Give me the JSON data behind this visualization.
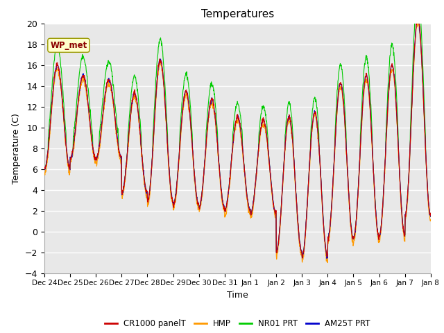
{
  "title": "Temperatures",
  "xlabel": "Time",
  "ylabel": "Temperature (C)",
  "ylim": [
    -4,
    20
  ],
  "bg_color": "#e8e8e8",
  "fig_color": "#ffffff",
  "legend_labels": [
    "CR1000 panelT",
    "HMP",
    "NR01 PRT",
    "AM25T PRT"
  ],
  "legend_colors": [
    "#cc0000",
    "#ff9900",
    "#00cc00",
    "#0000cc"
  ],
  "station_label": "WP_met",
  "x_tick_labels": [
    "Dec 24",
    "Dec 25",
    "Dec 26",
    "Dec 27",
    "Dec 28",
    "Dec 29",
    "Dec 30",
    "Dec 31",
    "Jan 1",
    "Jan 2",
    "Jan 3",
    "Jan 4",
    "Jan 5",
    "Jan 6",
    "Jan 7",
    "Jan 8"
  ],
  "num_days": 15,
  "figsize": [
    6.4,
    4.8
  ],
  "dpi": 100
}
